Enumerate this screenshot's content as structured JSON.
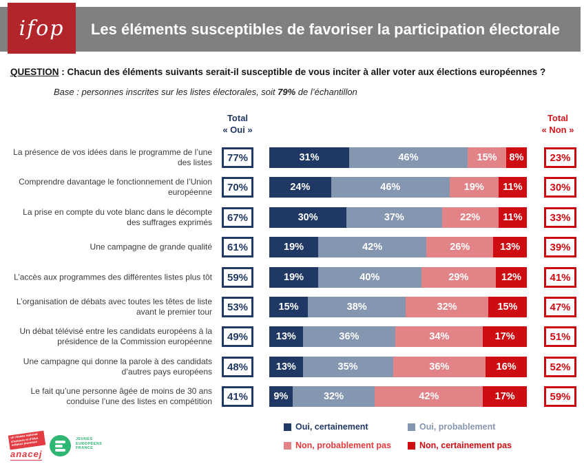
{
  "header": {
    "logo": "ifop",
    "title": "Les éléments susceptibles de favoriser la participation électorale"
  },
  "question": {
    "label": "QUESTION",
    "text": " : Chacun des éléments suivants serait-il susceptible de vous inciter à aller voter aux élections européennes ?"
  },
  "base_note": {
    "prefix": "Base : personnes inscrites sur les listes électorales, soit ",
    "highlight": "79%",
    "suffix": " de l’échantillon"
  },
  "column_headers": {
    "oui_line1": "Total",
    "oui_line2": "« Oui »",
    "non_line1": "Total",
    "non_line2": "« Non »"
  },
  "chart_data": {
    "type": "bar",
    "stacked": true,
    "orientation": "horizontal",
    "x_range": [
      0,
      100
    ],
    "unit": "%",
    "categories": [
      "La présence de vos idées dans le programme de l’une des listes",
      "Comprendre davantage le fonctionnement de l’Union européenne",
      "La prise en compte du vote blanc dans le décompte des suffrages exprimés",
      "Une campagne de grande qualité",
      "L’accès aux programmes des différentes listes plus tôt",
      "L’organisation de débats avec toutes les têtes de liste avant le premier tour",
      "Un débat télévisé entre les candidats européens à la présidence de la Commission européenne",
      "Une campagne qui donne la parole à des candidats d’autres pays européens",
      "Le fait qu’une personne âgée de moins de 30 ans conduise l’une des listes en compétition"
    ],
    "category_lines": [
      [
        "La présence de vos idées dans le programme de l’une",
        "des listes"
      ],
      [
        "Comprendre davantage le fonctionnement de l’Union",
        "européenne"
      ],
      [
        "La prise en compte du vote blanc dans le décompte",
        "des suffrages exprimés"
      ],
      [
        "Une campagne de grande qualité"
      ],
      [
        "L’accès aux programmes des différentes listes plus tôt"
      ],
      [
        "L’organisation de débats avec toutes les têtes de liste",
        "avant le premier tour"
      ],
      [
        "Un débat télévisé entre les candidats européens à la",
        "présidence de la Commission européenne"
      ],
      [
        "Une campagne qui donne la parole à des candidats",
        "d’autres pays européens"
      ],
      [
        "Le fait qu’une personne âgée de moins de 30 ans",
        "conduise l’une des listes en compétition"
      ]
    ],
    "series": [
      {
        "name": "Oui, certainement",
        "color": "#1f3864",
        "values": [
          31,
          24,
          30,
          19,
          19,
          15,
          13,
          13,
          9
        ]
      },
      {
        "name": "Oui, probablement",
        "color": "#8496b0",
        "values": [
          46,
          46,
          37,
          42,
          40,
          38,
          36,
          35,
          32
        ]
      },
      {
        "name": "Non, probablement pas",
        "color": "#e28388",
        "values": [
          15,
          19,
          22,
          26,
          29,
          32,
          34,
          36,
          42
        ]
      },
      {
        "name": "Non, certainement pas",
        "color": "#ce0d12",
        "values": [
          8,
          11,
          11,
          13,
          12,
          15,
          17,
          16,
          17
        ]
      }
    ],
    "total_oui": [
      "77%",
      "70%",
      "67%",
      "61%",
      "59%",
      "53%",
      "49%",
      "48%",
      "41%"
    ],
    "total_non": [
      "23%",
      "30%",
      "33%",
      "39%",
      "41%",
      "47%",
      "51%",
      "52%",
      "59%"
    ]
  },
  "legend": [
    {
      "label": "Oui, certainement",
      "swatch": "#1f3864",
      "text_color": "#1f3864"
    },
    {
      "label": "Oui, probablement",
      "swatch": "#8496b0",
      "text_color": "#8496b0"
    },
    {
      "label": "Non, probablement pas",
      "swatch": "#e28388",
      "text_color": "#e8393d"
    },
    {
      "label": "Non, certainement pas",
      "swatch": "#ce0d12",
      "text_color": "#ce0d12"
    }
  ],
  "footer": {
    "anacej_banner_lines": [
      "un réseau national",
      "d’acteurs et d’élus",
      "enfance jeunesse"
    ],
    "anacej_name": "anacej",
    "jef_lines": [
      "JEUNES",
      "EUROPÉENS",
      "FRANCE"
    ]
  },
  "colors": {
    "band_gray": "#808080",
    "ifop_red": "#b2252b",
    "navy": "#1f3864",
    "gray_blue": "#8496b0",
    "pink": "#e28388",
    "red": "#ce0d12",
    "label_gray": "#3b3b3b"
  }
}
